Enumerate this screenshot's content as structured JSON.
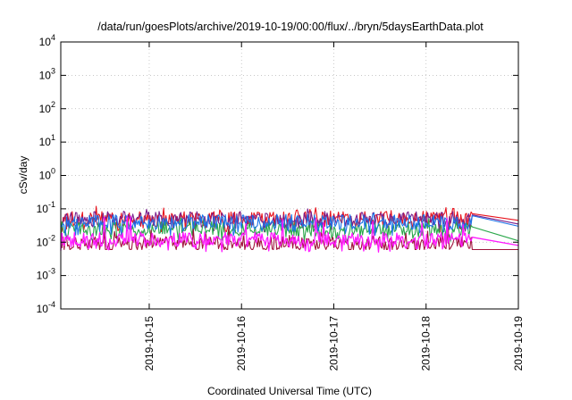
{
  "chart_data": {
    "type": "line",
    "title": "/data/run/goesPlots/archive/2019-10-19/00:00/flux/../bryn/5daysEarthData.plot",
    "xlabel": "Coordinated Universal Time (UTC)",
    "ylabel": "cSv/day",
    "x_range": [
      "2019-10-14T01:00",
      "2019-10-19T00:00"
    ],
    "ylim": [
      0.0001,
      10000
    ],
    "y_scale": "log",
    "grid": true,
    "x_ticks": [
      "2019-10-15",
      "2019-10-16",
      "2019-10-17",
      "2019-10-18",
      "2019-10-19"
    ],
    "y_ticks": [
      {
        "value": 10000,
        "base": "10",
        "exp": "4"
      },
      {
        "value": 1000,
        "base": "10",
        "exp": "3"
      },
      {
        "value": 100,
        "base": "10",
        "exp": "2"
      },
      {
        "value": 10,
        "base": "10",
        "exp": "1"
      },
      {
        "value": 1,
        "base": "10",
        "exp": "0"
      },
      {
        "value": 0.1,
        "base": "10",
        "exp": "-1"
      },
      {
        "value": 0.01,
        "base": "10",
        "exp": "-2"
      },
      {
        "value": 0.001,
        "base": "10",
        "exp": "-3"
      },
      {
        "value": 0.0001,
        "base": "10",
        "exp": "-4"
      }
    ],
    "data_end": "2019-10-18T12:00",
    "series": [
      {
        "color": "#e8141e",
        "values_approx": {
          "typical": 0.05,
          "min": 0.02,
          "max": 0.12,
          "tail": 0.045
        }
      },
      {
        "color": "#7a1f8c",
        "values_approx": {
          "typical": 0.05,
          "min": 0.02,
          "max": 0.1,
          "tail": 0.035
        }
      },
      {
        "color": "#2aa74a",
        "values_approx": {
          "typical": 0.025,
          "min": 0.01,
          "max": 0.06,
          "tail": 0.011
        }
      },
      {
        "color": "#1a73e8",
        "values_approx": {
          "typical": 0.04,
          "min": 0.015,
          "max": 0.08,
          "tail": 0.03
        }
      },
      {
        "color": "#a0133c",
        "values_approx": {
          "typical": 0.009,
          "min": 0.006,
          "max": 0.03,
          "tail": 0.006
        }
      },
      {
        "color": "#ff1aff",
        "values_approx": {
          "typical": 0.012,
          "min": 0.005,
          "max": 0.06,
          "tail": 0.008
        }
      }
    ]
  }
}
